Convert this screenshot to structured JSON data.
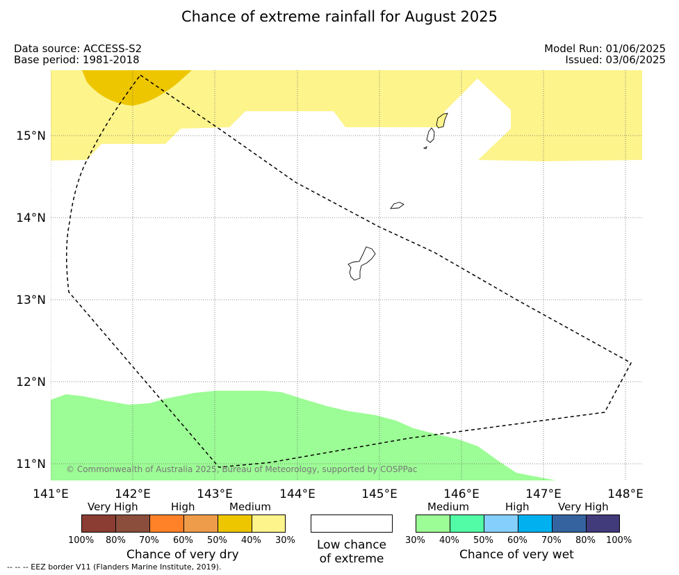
{
  "title": "Chance of extreme rainfall for August 2025",
  "header": {
    "data_source": "Data source: ACCESS-S2",
    "base_period": "Base period: 1981-2018",
    "model_run": "Model Run: 01/06/2025",
    "issued": "Issued: 03/06/2025"
  },
  "map": {
    "x_axis_labels": [
      "141°E",
      "142°E",
      "143°E",
      "144°E",
      "145°E",
      "146°E",
      "147°E",
      "148°E"
    ],
    "y_axis_labels": [
      "15°N",
      "14°N",
      "13°N",
      "12°N",
      "11°N"
    ],
    "copyright": "© Commonwealth of Australia 2025, Bureau of Meteorology, supported by COSPPac",
    "grid": "dotted",
    "colors": {
      "medium_dry": "#fdf48c",
      "high_dry_40_50": "#eec600",
      "medium_wet": "#9cfc95",
      "eez_line": "#000000"
    }
  },
  "legend": {
    "dry": {
      "categories": [
        "Very High",
        "High",
        "Medium"
      ],
      "ticks": [
        "100%",
        "80%",
        "70%",
        "60%",
        "50%",
        "40%",
        "30%"
      ],
      "colors": [
        "#8b3d33",
        "#8b4e3c",
        "#ff8128",
        "#ee9c4a",
        "#eec600",
        "#fdf48c"
      ],
      "title": "Chance of very dry"
    },
    "low": {
      "line1": "Low chance",
      "line2": "of extreme",
      "color": "#ffffff"
    },
    "wet": {
      "categories": [
        "Medium",
        "High",
        "Very High"
      ],
      "ticks": [
        "30%",
        "40%",
        "50%",
        "60%",
        "70%",
        "80%",
        "100%"
      ],
      "colors": [
        "#9cfc95",
        "#52fba5",
        "#85cffc",
        "#01b1ef",
        "#3563a0",
        "#413a7b"
      ],
      "title": "Chance of very wet"
    }
  },
  "footnote": "--  --  -- EEZ border V11 (Flanders Marine Institute, 2019)."
}
